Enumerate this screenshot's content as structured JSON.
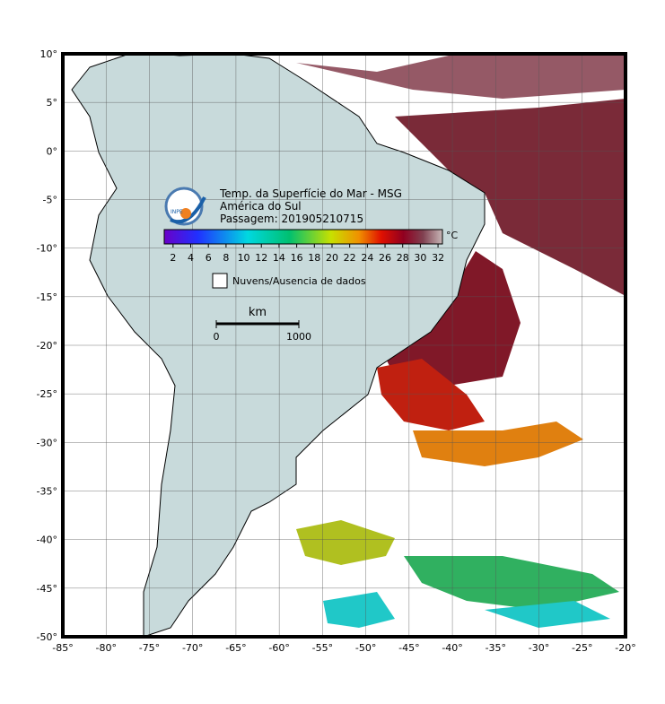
{
  "header": {
    "title": "Temp. da Superfície do Mar - MSG",
    "region": "América do Sul",
    "pass": "Passagem: 201905210715",
    "logo": "INPE"
  },
  "colorbar": {
    "range": [
      1,
      32.5
    ],
    "ticks": [
      2,
      4,
      6,
      8,
      10,
      12,
      14,
      16,
      18,
      20,
      22,
      24,
      26,
      28,
      30,
      32
    ],
    "unit": "°C"
  },
  "legend": {
    "no_data": "Nuvens/Ausencia de dados"
  },
  "scale_bar": {
    "unit": "km",
    "ticks": [
      0,
      1000
    ]
  },
  "map": {
    "lon_range": [
      -85,
      -20
    ],
    "lat_range": [
      -50,
      10
    ],
    "lon_ticks": [
      {
        "value": -85,
        "label": "-85°"
      },
      {
        "value": -80,
        "label": "-80°"
      },
      {
        "value": -75,
        "label": "-75°"
      },
      {
        "value": -70,
        "label": "-70°"
      },
      {
        "value": -65,
        "label": "-65°"
      },
      {
        "value": -60,
        "label": "-60°"
      },
      {
        "value": -55,
        "label": "-55°"
      },
      {
        "value": -50,
        "label": "-50°"
      },
      {
        "value": -45,
        "label": "-45°"
      },
      {
        "value": -40,
        "label": "-40°"
      },
      {
        "value": -35,
        "label": "-35°"
      },
      {
        "value": -30,
        "label": "-30°"
      },
      {
        "value": -25,
        "label": "-25°"
      },
      {
        "value": -20,
        "label": "-20°"
      }
    ],
    "lat_ticks": [
      {
        "value": 10,
        "label": "10°"
      },
      {
        "value": 5,
        "label": "5°"
      },
      {
        "value": 0,
        "label": "0°"
      },
      {
        "value": -5,
        "label": "-5°"
      },
      {
        "value": -10,
        "label": "-10°"
      },
      {
        "value": -15,
        "label": "-15°"
      },
      {
        "value": -20,
        "label": "-20°"
      },
      {
        "value": -25,
        "label": "-25°"
      },
      {
        "value": -30,
        "label": "-30°"
      },
      {
        "value": -35,
        "label": "-35°"
      },
      {
        "value": -40,
        "label": "-40°"
      },
      {
        "value": -45,
        "label": "-45°"
      },
      {
        "value": -50,
        "label": "-50°"
      }
    ]
  }
}
